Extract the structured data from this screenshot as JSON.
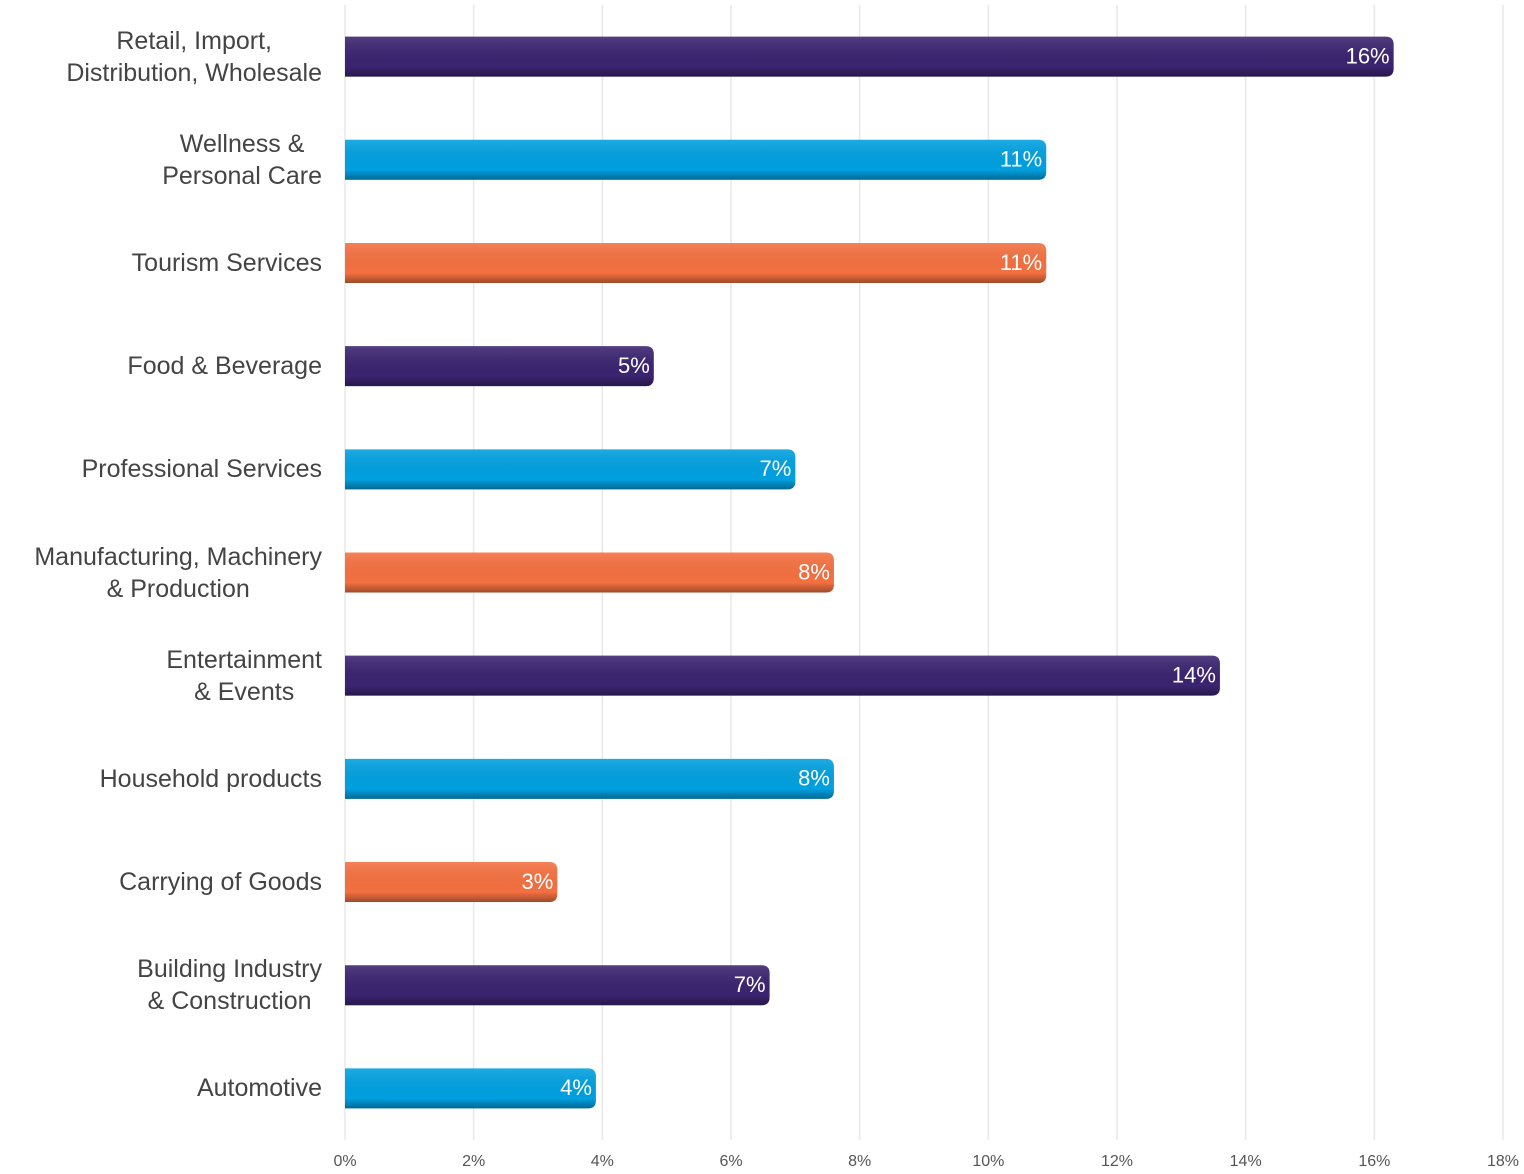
{
  "chart_data": {
    "type": "bar",
    "orientation": "horizontal",
    "categories": [
      "Retail, Import,\nDistribution, Wholesale",
      "Wellness &\nPersonal Care",
      "Tourism Services",
      "Food & Beverage",
      "Professional Services",
      "Manufacturing, Machinery\n& Production",
      "Entertainment\n& Events",
      "Household products",
      "Carrying of Goods",
      "Building Industry\n& Construction",
      "Automotive"
    ],
    "values": [
      16.3,
      10.9,
      10.9,
      4.8,
      7.0,
      7.6,
      13.6,
      7.6,
      3.3,
      6.6,
      3.9
    ],
    "value_labels": [
      "16%",
      "11%",
      "11%",
      "5%",
      "7%",
      "8%",
      "14%",
      "8%",
      "3%",
      "7%",
      "4%"
    ],
    "colors": [
      "#3b2470",
      "#00a0e0",
      "#f47040",
      "#3b2470",
      "#00a0e0",
      "#f47040",
      "#3b2470",
      "#00a0e0",
      "#f47040",
      "#3b2470",
      "#00a0e0"
    ],
    "xlim": [
      0,
      18
    ],
    "xticks": [
      {
        "value": 0,
        "label": "0%"
      },
      {
        "value": 2,
        "label": "2%"
      },
      {
        "value": 4,
        "label": "4%"
      },
      {
        "value": 6,
        "label": "6%"
      },
      {
        "value": 8,
        "label": "8%"
      },
      {
        "value": 10,
        "label": "10%"
      },
      {
        "value": 12,
        "label": "12%"
      },
      {
        "value": 14,
        "label": "14%"
      },
      {
        "value": 16,
        "label": "16%"
      },
      {
        "value": 18,
        "label": "18%"
      }
    ],
    "grid": true
  }
}
